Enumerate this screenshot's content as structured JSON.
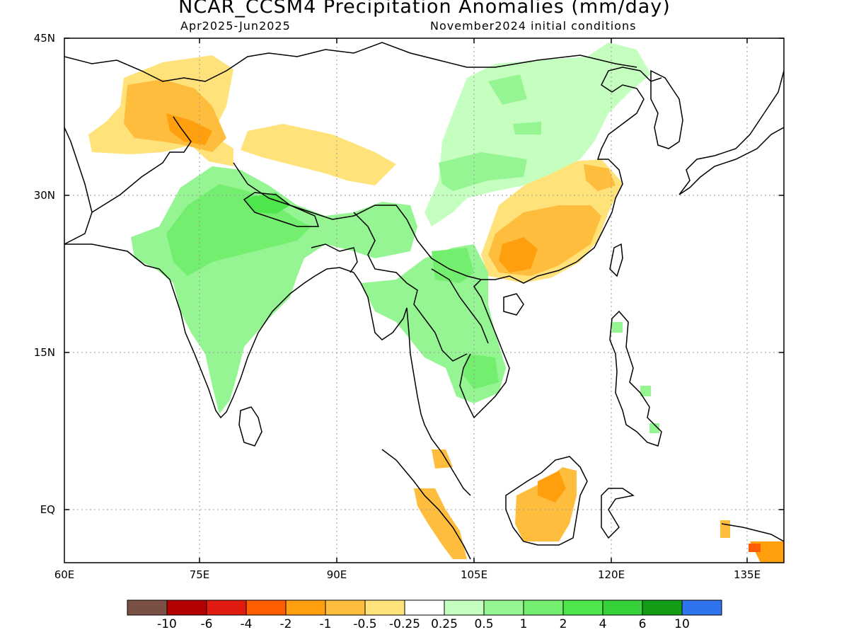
{
  "title": "NCAR_CCSM4 Precipitation Anomalies (mm/day)",
  "subtitle_left": "Apr2025-Jun2025",
  "subtitle_right": "November2024 initial conditions",
  "lat_labels": [
    "45N",
    "30N",
    "15N",
    "EQ"
  ],
  "lon_labels": [
    "60E",
    "75E",
    "90E",
    "105E",
    "120E",
    "135E"
  ],
  "colorbar": {
    "colors": [
      "#7a5045",
      "#b40000",
      "#e01b10",
      "#ff5d00",
      "#ff9f0d",
      "#ffbd3d",
      "#ffe27a",
      "#ffffff",
      "#c5ffc0",
      "#96f593",
      "#74ee6e",
      "#4ee64a",
      "#37d23a",
      "#139d16",
      "#2f74ee"
    ],
    "labels": [
      "-10",
      "-6",
      "-4",
      "-2",
      "-1",
      "-0.5",
      "-0.25",
      "0.25",
      "0.5",
      "1",
      "2",
      "4",
      "6",
      "10"
    ]
  }
}
